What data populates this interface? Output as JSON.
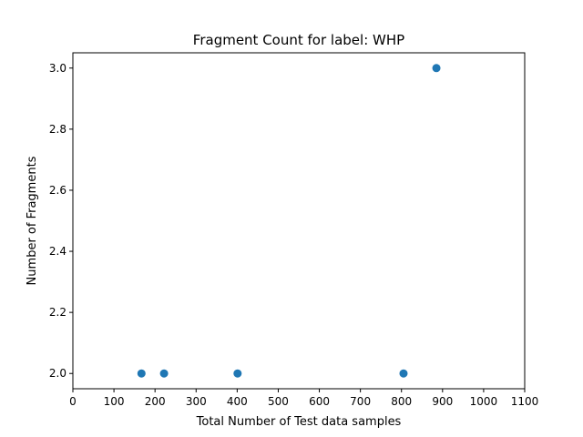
{
  "chart_data": {
    "type": "scatter",
    "title": "Fragment Count for label: WHP",
    "xlabel": "Total Number of Test data samples",
    "ylabel": "Number of Fragments",
    "xlim": [
      0,
      1100
    ],
    "ylim": [
      1.95,
      3.05
    ],
    "xticks": [
      0,
      100,
      200,
      300,
      400,
      500,
      600,
      700,
      800,
      900,
      1000,
      1100
    ],
    "yticks": [
      2.0,
      2.2,
      2.4,
      2.6,
      2.8,
      3.0
    ],
    "xtick_labels": [
      "0",
      "100",
      "200",
      "300",
      "400",
      "500",
      "600",
      "700",
      "800",
      "900",
      "1000",
      "1100"
    ],
    "ytick_labels": [
      "2.0",
      "2.2",
      "2.4",
      "2.6",
      "2.8",
      "3.0"
    ],
    "grid": false,
    "legend": null,
    "marker_color": "#1f77b4",
    "points": [
      {
        "x": 167,
        "y": 2.0
      },
      {
        "x": 222,
        "y": 2.0
      },
      {
        "x": 401,
        "y": 2.0
      },
      {
        "x": 805,
        "y": 2.0
      },
      {
        "x": 885,
        "y": 3.0
      }
    ]
  }
}
